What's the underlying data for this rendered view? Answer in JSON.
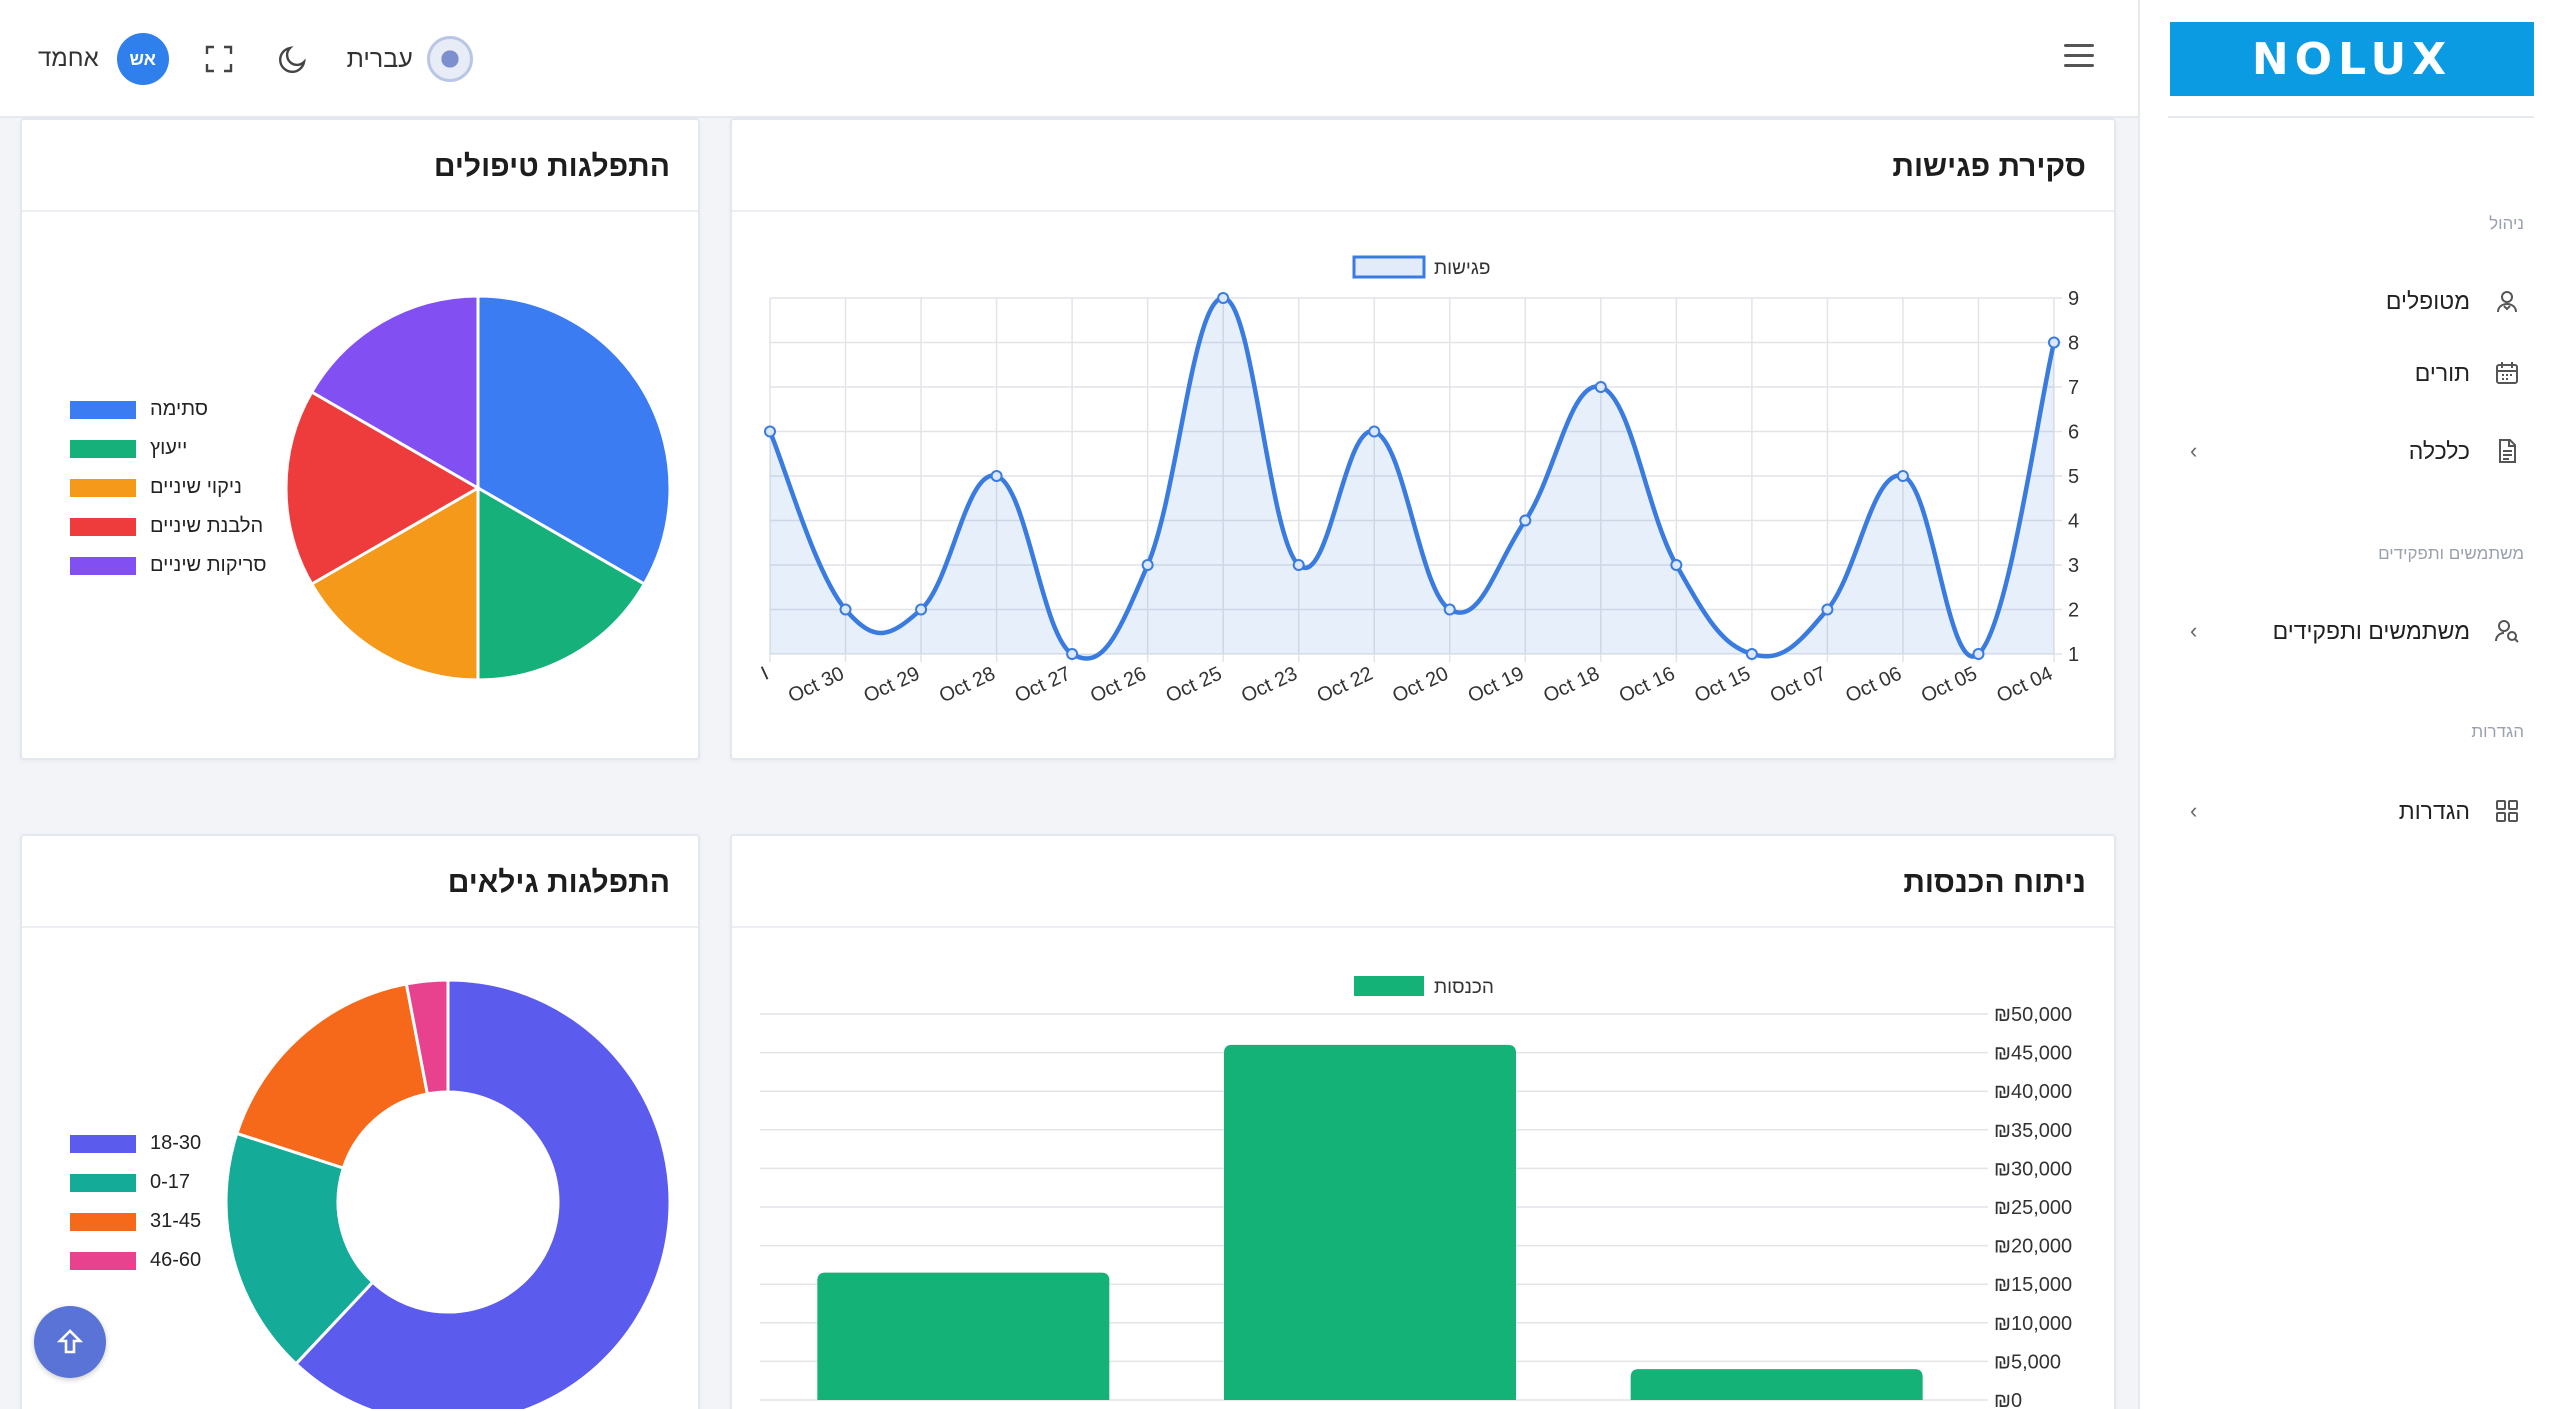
{
  "header": {
    "user_name": "אחמד",
    "avatar_initials": "אש",
    "language": "עברית"
  },
  "logo": {
    "text": "NOLUX"
  },
  "sidebar": {
    "sections": [
      {
        "title": "ניהול",
        "items": [
          {
            "label": "מטופלים",
            "icon": "patient-icon",
            "has_children": false
          },
          {
            "label": "תורים",
            "icon": "calendar-icon",
            "has_children": false
          },
          {
            "label": "כלכלה",
            "icon": "document-icon",
            "has_children": true
          }
        ]
      },
      {
        "title": "משתמשים ותפקידים",
        "items": [
          {
            "label": "משתמשים ותפקידים",
            "icon": "users-icon",
            "has_children": true
          }
        ]
      },
      {
        "title": "הגדרות",
        "items": [
          {
            "label": "הגדרות",
            "icon": "grid-icon",
            "has_children": true
          }
        ]
      }
    ]
  },
  "cards": {
    "meetings": {
      "title": "סקירת פגישות"
    },
    "treatments": {
      "title": "התפלגות טיפולים"
    },
    "revenue": {
      "title": "ניתוח הכנסות"
    },
    "ages": {
      "title": "התפלגות גילאים"
    }
  },
  "chart_data": [
    {
      "type": "area",
      "legend": [
        "פגישות"
      ],
      "x": [
        "Oct 04",
        "Oct 05",
        "Oct 06",
        "Oct 07",
        "Oct 15",
        "Oct 16",
        "Oct 18",
        "Oct 19",
        "Oct 20",
        "Oct 22",
        "Oct 23",
        "Oct 25",
        "Oct 26",
        "Oct 27",
        "Oct 28",
        "Oct 29",
        "Oct 30",
        "I"
      ],
      "series": [
        {
          "name": "פגישות",
          "values": [
            8,
            1,
            5,
            2,
            1,
            3,
            7,
            4,
            2,
            6,
            3,
            9,
            3,
            1,
            5,
            2,
            2,
            6
          ]
        }
      ],
      "ylim": [
        1,
        9
      ],
      "yticks": [
        "1",
        "2",
        "3",
        "4",
        "5",
        "6",
        "7",
        "8",
        "9"
      ],
      "x_axis_direction": "right-to-left",
      "grid": true,
      "color": "#3a7be0"
    },
    {
      "type": "pie",
      "labels": [
        "סתימה",
        "ייעוץ",
        "ניקוי שיניים",
        "הלבנת שיניים",
        "סריקות שיניים"
      ],
      "values": [
        2,
        1,
        1,
        1,
        1
      ],
      "colors": [
        "#3b7cf2",
        "#16b07a",
        "#f4991a",
        "#ee3c3c",
        "#8250f2"
      ]
    },
    {
      "type": "bar",
      "legend": [
        "הכנסות"
      ],
      "series": [
        {
          "name": "הכנסות",
          "values": [
            4000,
            46000,
            16500
          ]
        }
      ],
      "ylim": [
        0,
        50000
      ],
      "yticks": [
        "₪0",
        "₪5,000",
        "₪10,000",
        "₪15,000",
        "₪20,000",
        "₪25,000",
        "₪30,000",
        "₪35,000",
        "₪40,000",
        "₪45,000",
        "₪50,000"
      ],
      "x_axis_direction": "right-to-left",
      "color": "#14b277"
    },
    {
      "type": "pie",
      "subtype": "doughnut",
      "labels": [
        "18-30",
        "0-17",
        "31-45",
        "46-60"
      ],
      "values": [
        62,
        18,
        17,
        3
      ],
      "colors": [
        "#5b5bee",
        "#14ab98",
        "#f6691b",
        "#e8428e"
      ]
    }
  ]
}
